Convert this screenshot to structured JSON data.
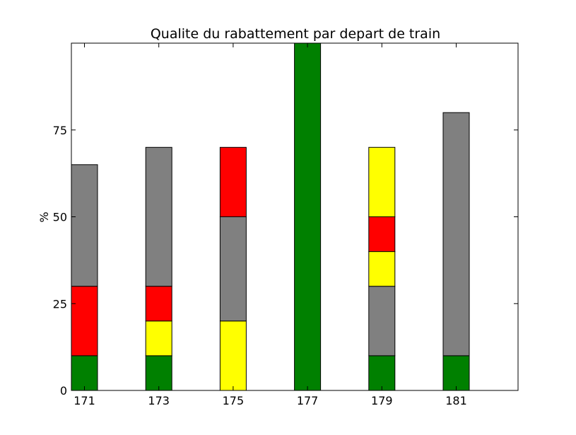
{
  "chart_data": {
    "type": "bar",
    "stacked": true,
    "title": "Qualite du rabattement par depart de train",
    "xlabel": "",
    "ylabel": "%",
    "ylim": [
      0,
      100
    ],
    "yticks": [
      0,
      25,
      50,
      75
    ],
    "categories": [
      "171",
      "173",
      "175",
      "177",
      "179",
      "181"
    ],
    "grid": false,
    "legend": "none",
    "bars": [
      {
        "category": "171",
        "segments": [
          {
            "color": "#008000",
            "from": 0,
            "to": 10
          },
          {
            "color": "#ff0000",
            "from": 10,
            "to": 30
          },
          {
            "color": "#808080",
            "from": 30,
            "to": 65
          }
        ]
      },
      {
        "category": "173",
        "segments": [
          {
            "color": "#008000",
            "from": 0,
            "to": 10
          },
          {
            "color": "#ffff00",
            "from": 10,
            "to": 20
          },
          {
            "color": "#ff0000",
            "from": 20,
            "to": 30
          },
          {
            "color": "#808080",
            "from": 30,
            "to": 70
          }
        ]
      },
      {
        "category": "175",
        "segments": [
          {
            "color": "#ffff00",
            "from": 0,
            "to": 20
          },
          {
            "color": "#808080",
            "from": 20,
            "to": 50
          },
          {
            "color": "#ff0000",
            "from": 50,
            "to": 70
          }
        ]
      },
      {
        "category": "177",
        "segments": [
          {
            "color": "#008000",
            "from": 0,
            "to": 100
          }
        ]
      },
      {
        "category": "179",
        "segments": [
          {
            "color": "#008000",
            "from": 0,
            "to": 10
          },
          {
            "color": "#808080",
            "from": 10,
            "to": 30
          },
          {
            "color": "#ffff00",
            "from": 30,
            "to": 40
          },
          {
            "color": "#ff0000",
            "from": 40,
            "to": 50
          },
          {
            "color": "#ffff00",
            "from": 50,
            "to": 70
          }
        ]
      },
      {
        "category": "181",
        "segments": [
          {
            "color": "#008000",
            "from": 0,
            "to": 10
          },
          {
            "color": "#808080",
            "from": 10,
            "to": 80
          }
        ]
      }
    ]
  }
}
